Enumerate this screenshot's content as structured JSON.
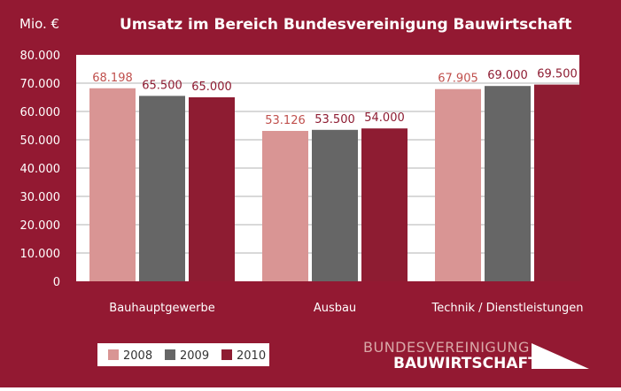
{
  "chart_data": {
    "type": "bar",
    "title": "Umsatz im Bereich Bundesvereinigung Bauwirtschaft",
    "ylabel": "Mio. €",
    "xlabel": "",
    "ylim": [
      0,
      80000
    ],
    "yticks": [
      0,
      10000,
      20000,
      30000,
      40000,
      50000,
      60000,
      70000,
      80000
    ],
    "ytick_labels": [
      "0",
      "10.000",
      "20.000",
      "30.000",
      "40.000",
      "50.000",
      "60.000",
      "70.000",
      "80.000"
    ],
    "categories": [
      "Bauhauptgewerbe",
      "Ausbau",
      "Technik / Dienstleistungen"
    ],
    "series": [
      {
        "name": "2008",
        "color": "#d99594",
        "values": [
          68198,
          53126,
          67905
        ],
        "labels": [
          "68.198",
          "53.126",
          "67.905"
        ]
      },
      {
        "name": "2009",
        "color": "#666666",
        "values": [
          65500,
          53500,
          69000
        ],
        "labels": [
          "65.500",
          "53.500",
          "69.000"
        ]
      },
      {
        "name": "2010",
        "color": "#8e1c32",
        "values": [
          65000,
          54000,
          69500
        ],
        "labels": [
          "65.000",
          "54.000",
          "69.500"
        ]
      }
    ],
    "grid": true,
    "legend_position": "bottom-left"
  },
  "colors": {
    "frame": "#931932",
    "plot_bg": "#ffffff",
    "grid": "#b3b3b3",
    "axis_text": "#ffffff",
    "label_2008": "#c0504d",
    "label_default": "#8e1c32"
  },
  "logo": {
    "line1": "BUNDESVEREINIGUNG",
    "line2": "BAUWIRTSCHAFT"
  }
}
